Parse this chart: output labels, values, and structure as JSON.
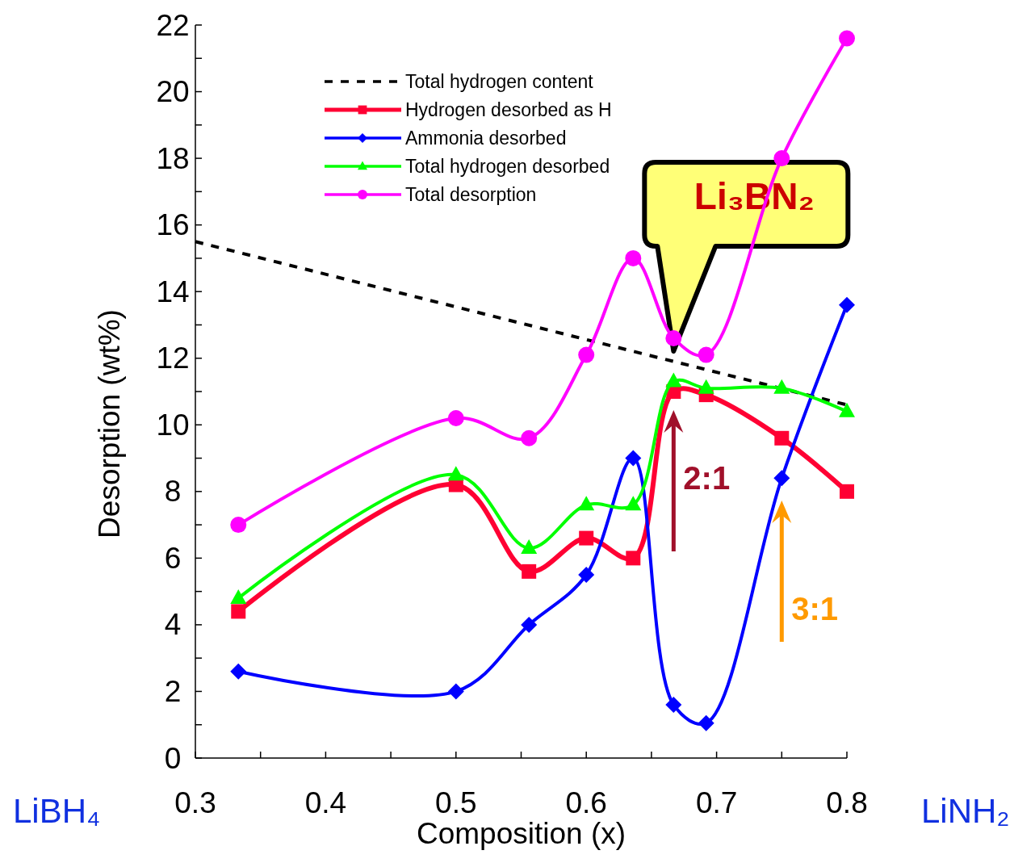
{
  "chart_data": {
    "type": "line",
    "xlabel": "Composition (x)",
    "ylabel": "Desorption (wt%)",
    "x": [
      0.333,
      0.5,
      0.556,
      0.6,
      0.636,
      0.667,
      0.692,
      0.75,
      0.8
    ],
    "xlim": [
      0.3,
      0.8
    ],
    "ylim": [
      0,
      22
    ],
    "xticks": [
      0.3,
      {
        "value": 0.35,
        "label": null
      },
      0.4,
      {
        "value": 0.45,
        "label": null
      },
      0.5,
      {
        "value": 0.55,
        "label": null
      },
      0.6,
      {
        "value": 0.65,
        "label": null
      },
      0.7,
      {
        "value": 0.75,
        "label": null
      },
      0.8
    ],
    "yticks": [
      0,
      {
        "value": 1,
        "label": null
      },
      2,
      {
        "value": 3,
        "label": null
      },
      4,
      {
        "value": 5,
        "label": null
      },
      6,
      {
        "value": 7,
        "label": null
      },
      8,
      {
        "value": 9,
        "label": null
      },
      10,
      {
        "value": 11,
        "label": null
      },
      12,
      {
        "value": 13,
        "label": null
      },
      14,
      {
        "value": 15,
        "label": null
      },
      16,
      {
        "value": 17,
        "label": null
      },
      18,
      {
        "value": 19,
        "label": null
      },
      20,
      {
        "value": 21,
        "label": null
      },
      22
    ],
    "grid": false,
    "legend": "top left",
    "series": [
      {
        "name": "Total hydrogen content",
        "color": "#000000",
        "x": [
          0.3,
          0.8
        ],
        "values": [
          15.5,
          10.6
        ],
        "line_style": "dashed",
        "marker": "none"
      },
      {
        "name": "Hydrogen desorbed as H",
        "color": "#ff0033",
        "values": [
          4.4,
          8.2,
          5.6,
          6.6,
          6.0,
          11.0,
          10.9,
          9.6,
          8.0
        ],
        "marker": "square"
      },
      {
        "name": "Ammonia desorbed",
        "color": "#0000ff",
        "values": [
          2.6,
          2.0,
          4.0,
          5.5,
          9.0,
          1.6,
          1.05,
          8.4,
          13.6
        ],
        "marker": "diamond"
      },
      {
        "name": "Total hydrogen desorbed",
        "color": "#00ff00",
        "values": [
          4.8,
          8.5,
          6.3,
          7.6,
          7.6,
          11.3,
          11.1,
          11.1,
          10.4
        ],
        "marker": "triangle"
      },
      {
        "name": "Total desorption",
        "color": "#ff00ff",
        "values": [
          7.0,
          10.2,
          9.6,
          12.1,
          15.0,
          12.6,
          12.1,
          18.0,
          21.6
        ],
        "marker": "circle"
      }
    ],
    "annotations": [
      "Li₃BN₂",
      "2:1",
      "3:1",
      "LiBH₄",
      "LiNH₂"
    ]
  }
}
